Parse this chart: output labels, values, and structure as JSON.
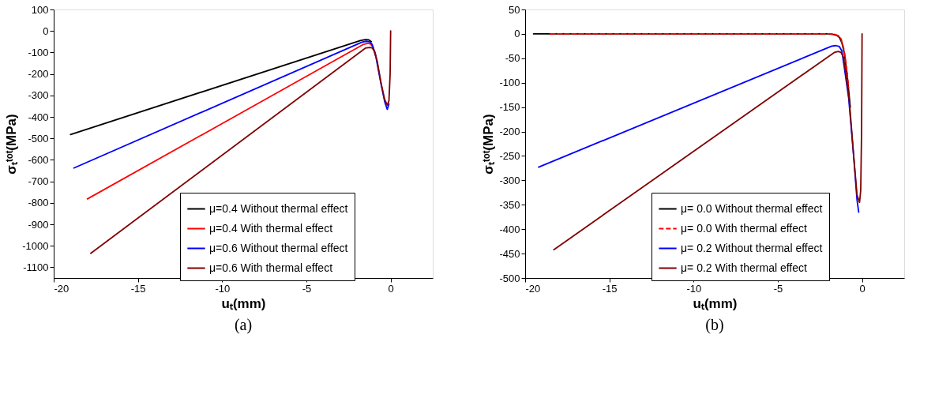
{
  "chart_data": [
    {
      "type": "line",
      "title": "(a)",
      "xlabel": "uₜ(mm)",
      "ylabel": "σₜᵗᵒᵗ(MPa)",
      "xlim": [
        -20,
        2.5
      ],
      "xticks": [
        -20,
        -15,
        -10,
        -5,
        0
      ],
      "ylim": [
        -1150,
        100
      ],
      "yticks": [
        -1100,
        -1000,
        -900,
        -800,
        -700,
        -600,
        -500,
        -400,
        -300,
        -200,
        -100,
        0,
        100
      ],
      "grid": false,
      "legend": "bottom right",
      "marker": "none",
      "line_style": "solid",
      "series": [
        {
          "name": "μ=0.4 Without thermal effect",
          "color": "#000000",
          "x": [
            -19,
            -1.8,
            -1.5,
            -1.3,
            -1.15
          ],
          "values": [
            -482,
            -45,
            -40,
            -41,
            -50
          ]
        },
        {
          "name": "μ=0.4 With thermal effect",
          "color": "#ff0000",
          "x": [
            -18,
            -1.6,
            -1.35,
            -1.2,
            -1.05,
            -0.9
          ],
          "values": [
            -782,
            -62,
            -58,
            -60,
            -75,
            -115
          ]
        },
        {
          "name": "μ=0.6 Without thermal effect",
          "color": "#0000ff",
          "x": [
            -18.8,
            -1.7,
            -1.45,
            -1.25,
            -1.1,
            -0.9,
            -0.6,
            -0.35,
            -0.2,
            -0.1
          ],
          "values": [
            -638,
            -52,
            -48,
            -50,
            -62,
            -110,
            -235,
            -330,
            -365,
            -340
          ]
        },
        {
          "name": "μ=0.6 With thermal effect",
          "color": "#800000",
          "x": [
            -17.8,
            -1.5,
            -1.25,
            -1.1,
            -0.95,
            -0.8,
            -0.55,
            -0.35,
            -0.2,
            -0.1,
            -0.03,
            0
          ],
          "values": [
            -1035,
            -80,
            -77,
            -79,
            -95,
            -140,
            -250,
            -320,
            -345,
            -325,
            -200,
            0
          ]
        }
      ]
    },
    {
      "type": "line",
      "title": "(b)",
      "xlabel": "uₜ(mm)",
      "ylabel": "σₜᵗᵒᵗ(MPa)",
      "xlim": [
        -20,
        2.5
      ],
      "xticks": [
        -20,
        -15,
        -10,
        -5,
        0
      ],
      "ylim": [
        -500,
        50
      ],
      "yticks": [
        -500,
        -450,
        -400,
        -350,
        -300,
        -250,
        -200,
        -150,
        -100,
        -50,
        0,
        50
      ],
      "grid": false,
      "legend": "bottom right",
      "marker": "none",
      "series": [
        {
          "name": "μ= 0.0 Without thermal effect",
          "color": "#000000",
          "line_style": "solid",
          "x": [
            -19.5,
            -2.0,
            -1.7,
            -1.5,
            -1.35,
            -1.2,
            -1.05,
            -0.9,
            -0.7
          ],
          "values": [
            0,
            0,
            -1,
            -3,
            -7,
            -18,
            -40,
            -80,
            -150
          ]
        },
        {
          "name": "μ= 0.0 With thermal effect",
          "color": "#ff0000",
          "line_style": "dashed",
          "x": [
            -18.5,
            -1.9,
            -1.6,
            -1.4,
            -1.25,
            -1.1,
            -0.95,
            -0.8
          ],
          "values": [
            0,
            0,
            -1,
            -4,
            -10,
            -28,
            -60,
            -110
          ]
        },
        {
          "name": "μ= 0.2 Without thermal effect",
          "color": "#0000ff",
          "line_style": "solid",
          "x": [
            -19.2,
            -1.8,
            -1.55,
            -1.35,
            -1.2,
            -1.05,
            -0.8,
            -0.5,
            -0.3,
            -0.2
          ],
          "values": [
            -273,
            -25,
            -24,
            -26,
            -35,
            -70,
            -130,
            -250,
            -340,
            -365
          ]
        },
        {
          "name": "μ= 0.2 With thermal effect",
          "color": "#800000",
          "line_style": "solid",
          "x": [
            -18.3,
            -1.65,
            -1.4,
            -1.25,
            -1.1,
            -0.95,
            -0.75,
            -0.5,
            -0.3,
            -0.15,
            -0.08,
            -0.03,
            0
          ],
          "values": [
            -442,
            -38,
            -36,
            -38,
            -48,
            -85,
            -140,
            -250,
            -330,
            -345,
            -320,
            -200,
            0
          ]
        }
      ]
    }
  ]
}
